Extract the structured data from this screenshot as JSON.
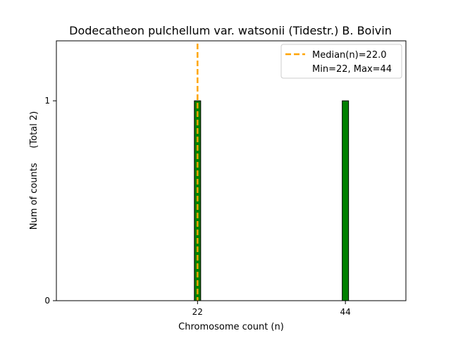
{
  "chart_data": {
    "type": "bar",
    "title": "Dodecatheon pulchellum var. watsonii (Tidestr.) B. Boivin",
    "xlabel": "Chromosome count (n)",
    "ylabel": "Num of counts     (Total 2)",
    "x": [
      22,
      44
    ],
    "values": [
      1,
      1
    ],
    "xticks": [
      "22",
      "44"
    ],
    "yticks": [
      "0",
      "1"
    ],
    "xlim": [
      1,
      53
    ],
    "ylim": [
      0,
      1.3
    ],
    "bar_color": "#008000",
    "bar_edge_color": "#000000",
    "median": {
      "value": 22,
      "label": "Median(n)=22.0",
      "color": "#FFA500"
    },
    "legend": {
      "placement": "top-right",
      "entries": [
        "Median(n)=22.0",
        "Min=22, Max=44"
      ]
    },
    "grid": false
  }
}
